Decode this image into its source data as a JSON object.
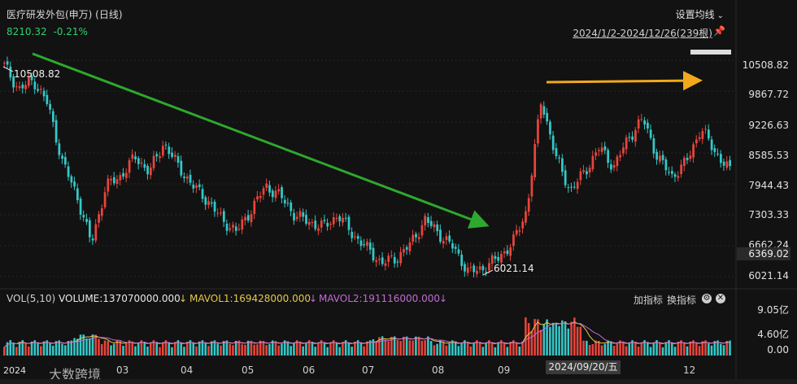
{
  "header": {
    "title": "医疗研发外包(申万) (日线)",
    "price": "8210.32",
    "change": "-0.21%",
    "settings_label": "设置均线",
    "range_label": "2024/1/2-2024/12/26(239根)"
  },
  "overlay": {
    "high_label": "10508.82",
    "low_label": "6021.14",
    "current_price_label": "6369.02"
  },
  "volume_panel": {
    "label": "VOL(5,10)",
    "volume": "VOLUME:137070000.000",
    "mavol1": "MAVOL1:169428000.000",
    "mavol2": "MAVOL2:191116000.000",
    "add_indicator": "加指标",
    "switch_indicator": "换指标",
    "y_ticks": [
      "9.05亿",
      "4.60亿",
      "0.00"
    ]
  },
  "colors": {
    "up": "#e8453c",
    "down": "#35c8c8",
    "mavol1": "#e6c84a",
    "mavol2": "#c46ad6",
    "green_arrow": "#2ea82e",
    "orange_arrow": "#f2a81d"
  },
  "date_badge": "2024/09/20/五",
  "watermark": "大数跨境",
  "year_label": "2024",
  "chart_data": {
    "type": "candlestick",
    "title": "医疗研发外包(申万) (日线)",
    "y_ticks": [
      10508.82,
      9867.72,
      9226.63,
      8585.53,
      7944.43,
      7303.33,
      6662.24,
      6021.14
    ],
    "ylim": [
      5850,
      10750
    ],
    "x_tick_labels": [
      "03",
      "04",
      "05",
      "06",
      "07",
      "08",
      "09",
      "12"
    ],
    "high": 10508.82,
    "low": 6021.14,
    "last_close": 8210.32,
    "close_path": [
      {
        "x": "01",
        "y": 10400
      },
      {
        "x": "01b",
        "y": 9900
      },
      {
        "x": "01c",
        "y": 10100
      },
      {
        "x": "01d",
        "y": 9600
      },
      {
        "x": "01e",
        "y": 8400
      },
      {
        "x": "01f",
        "y": 7700
      },
      {
        "x": "02",
        "y": 6700
      },
      {
        "x": "02b",
        "y": 7900
      },
      {
        "x": "02c",
        "y": 8100
      },
      {
        "x": "02d",
        "y": 8500
      },
      {
        "x": "03",
        "y": 8200
      },
      {
        "x": "03b",
        "y": 8800
      },
      {
        "x": "03c",
        "y": 8300
      },
      {
        "x": "03d",
        "y": 7900
      },
      {
        "x": "04",
        "y": 7600
      },
      {
        "x": "04b",
        "y": 7200
      },
      {
        "x": "04c",
        "y": 6950
      },
      {
        "x": "05",
        "y": 7400
      },
      {
        "x": "05b",
        "y": 7900
      },
      {
        "x": "05c",
        "y": 7700
      },
      {
        "x": "05d",
        "y": 7300
      },
      {
        "x": "06",
        "y": 7150
      },
      {
        "x": "06b",
        "y": 7050
      },
      {
        "x": "06c",
        "y": 7300
      },
      {
        "x": "06d",
        "y": 6900
      },
      {
        "x": "07",
        "y": 6600
      },
      {
        "x": "07b",
        "y": 6300
      },
      {
        "x": "07c",
        "y": 6400
      },
      {
        "x": "07d",
        "y": 6700
      },
      {
        "x": "08",
        "y": 7200
      },
      {
        "x": "08b",
        "y": 6900
      },
      {
        "x": "08c",
        "y": 6600
      },
      {
        "x": "08d",
        "y": 6100
      },
      {
        "x": "09",
        "y": 6200
      },
      {
        "x": "09b",
        "y": 6400
      },
      {
        "x": "09c",
        "y": 6700
      },
      {
        "x": "09d",
        "y": 7400
      },
      {
        "x": "10",
        "y": 9700
      },
      {
        "x": "10b",
        "y": 8500
      },
      {
        "x": "10c",
        "y": 7800
      },
      {
        "x": "10d",
        "y": 8200
      },
      {
        "x": "11",
        "y": 8700
      },
      {
        "x": "11b",
        "y": 8300
      },
      {
        "x": "11c",
        "y": 8900
      },
      {
        "x": "11d",
        "y": 9300
      },
      {
        "x": "11e",
        "y": 8500
      },
      {
        "x": "12",
        "y": 8100
      },
      {
        "x": "12b",
        "y": 8400
      },
      {
        "x": "12c",
        "y": 9100
      },
      {
        "x": "12d",
        "y": 8600
      },
      {
        "x": "12e",
        "y": 8210
      }
    ],
    "volume": {
      "ylim": [
        0,
        9.05
      ],
      "unit": "亿"
    }
  }
}
